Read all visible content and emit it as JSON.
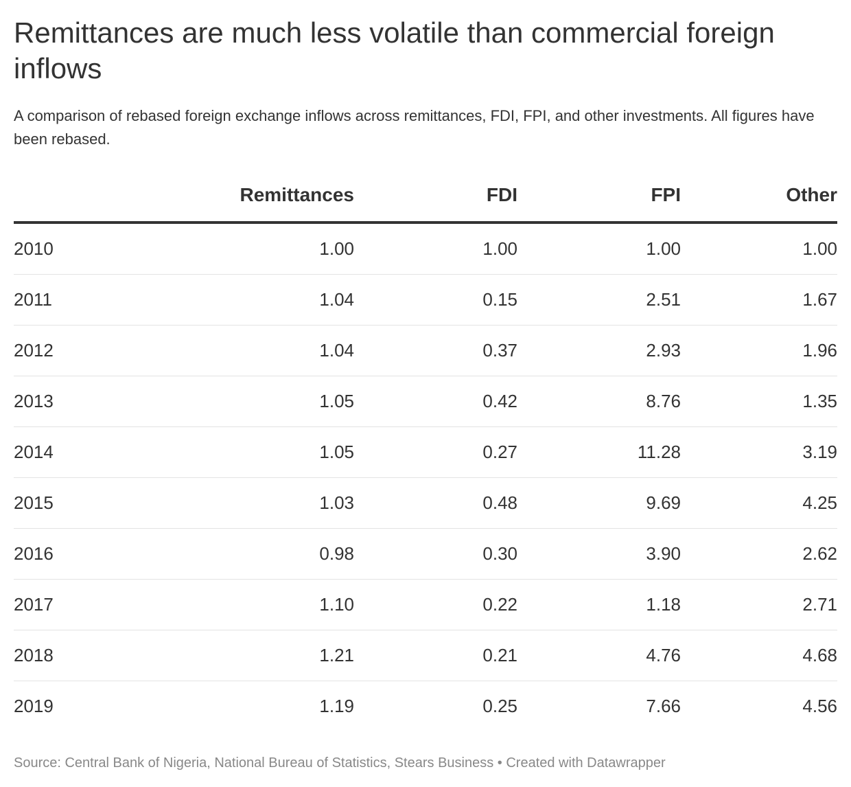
{
  "header": {
    "title": "Remittances are much less volatile than commercial foreign inflows",
    "subtitle": "A comparison of rebased foreign exchange inflows across remittances, FDI, FPI, and other investments. All figures have been rebased."
  },
  "chart_data": {
    "type": "table",
    "columns": [
      "",
      "Remittances",
      "FDI",
      "FPI",
      "Other"
    ],
    "rows": [
      [
        "2010",
        "1.00",
        "1.00",
        "1.00",
        "1.00"
      ],
      [
        "2011",
        "1.04",
        "0.15",
        "2.51",
        "1.67"
      ],
      [
        "2012",
        "1.04",
        "0.37",
        "2.93",
        "1.96"
      ],
      [
        "2013",
        "1.05",
        "0.42",
        "8.76",
        "1.35"
      ],
      [
        "2014",
        "1.05",
        "0.27",
        "11.28",
        "3.19"
      ],
      [
        "2015",
        "1.03",
        "0.48",
        "9.69",
        "4.25"
      ],
      [
        "2016",
        "0.98",
        "0.30",
        "3.90",
        "2.62"
      ],
      [
        "2017",
        "1.10",
        "0.22",
        "1.18",
        "2.71"
      ],
      [
        "2018",
        "1.21",
        "0.21",
        "4.76",
        "4.68"
      ],
      [
        "2019",
        "1.19",
        "0.25",
        "7.66",
        "4.56"
      ]
    ]
  },
  "footer": {
    "source": "Source: Central Bank of Nigeria, National Bureau of Statistics, Stears Business • Created with Datawrapper"
  }
}
